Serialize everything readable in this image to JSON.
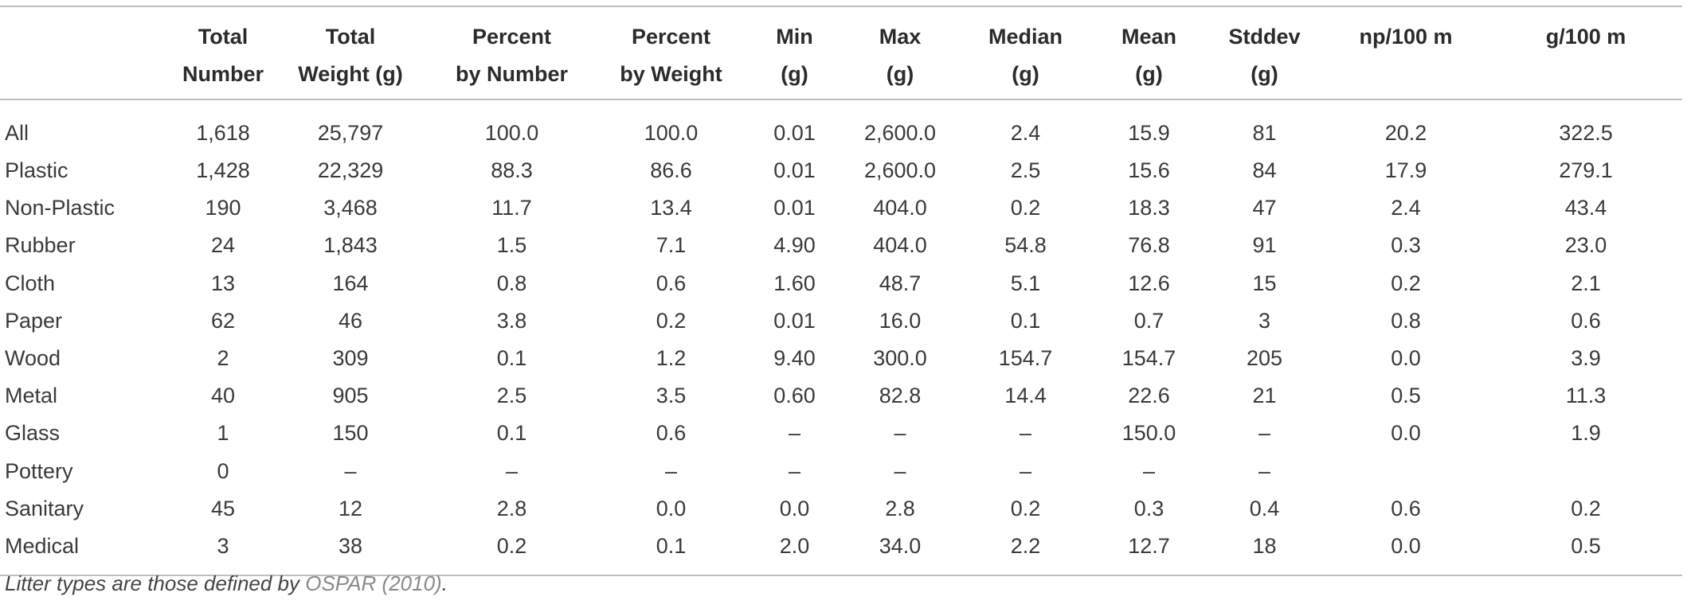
{
  "table": {
    "columns": [
      "",
      "Total\nNumber",
      "Total\nWeight (g)",
      "Percent\nby Number",
      "Percent\nby Weight",
      "Min\n(g)",
      "Max\n(g)",
      "Median\n(g)",
      "Mean\n(g)",
      "Stddev\n(g)",
      "np/100 m",
      "g/100 m"
    ],
    "rows": [
      [
        "All",
        "1,618",
        "25,797",
        "100.0",
        "100.0",
        "0.01",
        "2,600.0",
        "2.4",
        "15.9",
        "81",
        "20.2",
        "322.5"
      ],
      [
        "Plastic",
        "1,428",
        "22,329",
        "88.3",
        "86.6",
        "0.01",
        "2,600.0",
        "2.5",
        "15.6",
        "84",
        "17.9",
        "279.1"
      ],
      [
        "Non-Plastic",
        "190",
        "3,468",
        "11.7",
        "13.4",
        "0.01",
        "404.0",
        "0.2",
        "18.3",
        "47",
        "2.4",
        "43.4"
      ],
      [
        "Rubber",
        "24",
        "1,843",
        "1.5",
        "7.1",
        "4.90",
        "404.0",
        "54.8",
        "76.8",
        "91",
        "0.3",
        "23.0"
      ],
      [
        "Cloth",
        "13",
        "164",
        "0.8",
        "0.6",
        "1.60",
        "48.7",
        "5.1",
        "12.6",
        "15",
        "0.2",
        "2.1"
      ],
      [
        "Paper",
        "62",
        "46",
        "3.8",
        "0.2",
        "0.01",
        "16.0",
        "0.1",
        "0.7",
        "3",
        "0.8",
        "0.6"
      ],
      [
        "Wood",
        "2",
        "309",
        "0.1",
        "1.2",
        "9.40",
        "300.0",
        "154.7",
        "154.7",
        "205",
        "0.0",
        "3.9"
      ],
      [
        "Metal",
        "40",
        "905",
        "2.5",
        "3.5",
        "0.60",
        "82.8",
        "14.4",
        "22.6",
        "21",
        "0.5",
        "11.3"
      ],
      [
        "Glass",
        "1",
        "150",
        "0.1",
        "0.6",
        "–",
        "–",
        "–",
        "150.0",
        "–",
        "0.0",
        "1.9"
      ],
      [
        "Pottery",
        "0",
        "–",
        "–",
        "–",
        "–",
        "–",
        "–",
        "–",
        "–",
        "",
        ""
      ],
      [
        "Sanitary",
        "45",
        "12",
        "2.8",
        "0.0",
        "0.0",
        "2.8",
        "0.2",
        "0.3",
        "0.4",
        "0.6",
        "0.2"
      ],
      [
        "Medical",
        "3",
        "38",
        "0.2",
        "0.1",
        "2.0",
        "34.0",
        "2.2",
        "12.7",
        "18",
        "0.0",
        "0.5"
      ]
    ]
  },
  "footnote": {
    "text_before": "Litter types are those defined by ",
    "reference": "OSPAR (2010)",
    "text_after": "."
  }
}
